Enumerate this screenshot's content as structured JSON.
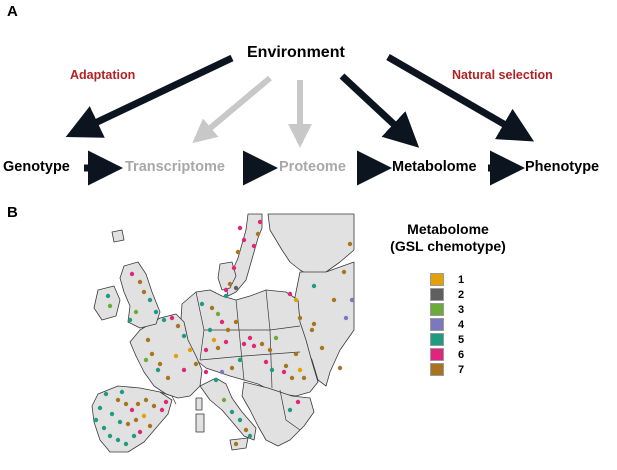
{
  "panel_a": {
    "label": "A",
    "environment": "Environment",
    "adaptation": "Adaptation",
    "natural_selection": "Natural selection",
    "nodes": [
      {
        "text": "Genotype",
        "style": "dark"
      },
      {
        "text": "Transcriptome",
        "style": "gray"
      },
      {
        "text": "Proteome",
        "style": "gray"
      },
      {
        "text": "Metabolome",
        "style": "dark"
      },
      {
        "text": "Phenotype",
        "style": "dark"
      }
    ]
  },
  "panel_b": {
    "label": "B",
    "legend": {
      "title_line1": "Metabolome",
      "title_line2": "(GSL chemotype)",
      "items": [
        {
          "label": "1",
          "color": "#e3a008"
        },
        {
          "label": "2",
          "color": "#5f5f5f"
        },
        {
          "label": "3",
          "color": "#6bab3a"
        },
        {
          "label": "4",
          "color": "#7b78c0"
        },
        {
          "label": "5",
          "color": "#1f9b82"
        },
        {
          "label": "6",
          "color": "#e0257a"
        },
        {
          "label": "7",
          "color": "#a8741f"
        }
      ]
    }
  }
}
